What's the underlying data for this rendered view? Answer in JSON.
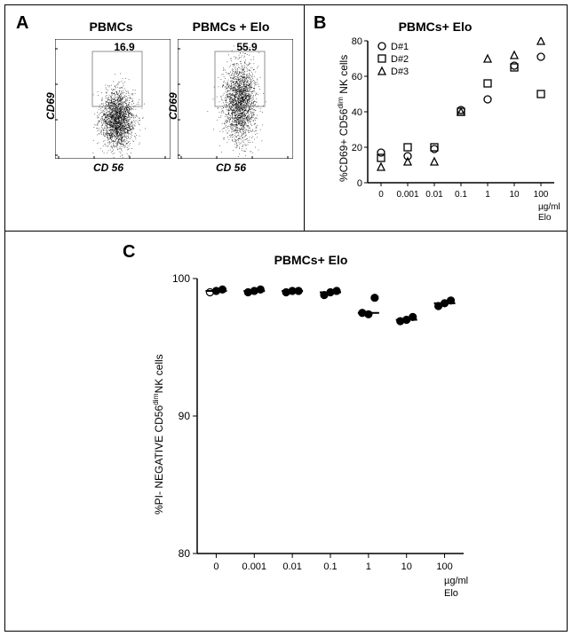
{
  "panelA": {
    "label": "A",
    "left_title": "PBMCs",
    "right_title": "PBMCs + Elo",
    "y_label": "CD69",
    "x_label": "CD 56",
    "left_gate_value": "16.9",
    "right_gate_value": "55.9",
    "plot_bg": "#ffffff",
    "border": "#000000",
    "dot_color": "#000000",
    "gate_border": "#808080"
  },
  "panelB": {
    "label": "B",
    "title": "PBMCs+ Elo",
    "y_label": "%CD69+ CD56ᵈⁱᵐ NK cells",
    "x_label": "µg/ml\nElo",
    "legend": [
      "D#1",
      "D#2",
      "D#3"
    ],
    "marker_shapes": [
      "circle",
      "square",
      "triangle"
    ],
    "x_categories": [
      "0",
      "0.001",
      "0.01",
      "0.1",
      "1",
      "10",
      "100"
    ],
    "y_min": 0,
    "y_max": 80,
    "y_step": 20,
    "series": {
      "D1": [
        17,
        15,
        19,
        41,
        47,
        66,
        71
      ],
      "D2": [
        14,
        20,
        20,
        40,
        56,
        65,
        50
      ],
      "D3": [
        9,
        12,
        12,
        40,
        70,
        72,
        80
      ]
    },
    "marker_color": "#000000",
    "bg": "#ffffff"
  },
  "panelC": {
    "label": "C",
    "title": "PBMCs+ Elo",
    "y_label": "%PI- NEGATIVE CD56ᵈⁱᵐNK cells",
    "x_label": "µg/ml\nElo",
    "x_categories": [
      "0",
      "0.001",
      "0.01",
      "0.1",
      "1",
      "10",
      "100"
    ],
    "y_min": 80,
    "y_max": 100,
    "y_step": 10,
    "yticks": [
      80,
      90,
      100
    ],
    "data": [
      [
        99.0,
        99.1,
        99.2
      ],
      [
        99.0,
        99.1,
        99.2
      ],
      [
        99.0,
        99.1,
        99.1
      ],
      [
        98.8,
        99.0,
        99.1
      ],
      [
        97.5,
        97.4,
        98.6
      ],
      [
        96.9,
        97.0,
        97.2
      ],
      [
        98.0,
        98.2,
        98.4
      ]
    ],
    "medians": [
      99.1,
      99.1,
      99.1,
      99.0,
      97.5,
      97.0,
      98.2
    ],
    "open_marker_index": 0,
    "marker_color": "#000000",
    "bg": "#ffffff"
  }
}
